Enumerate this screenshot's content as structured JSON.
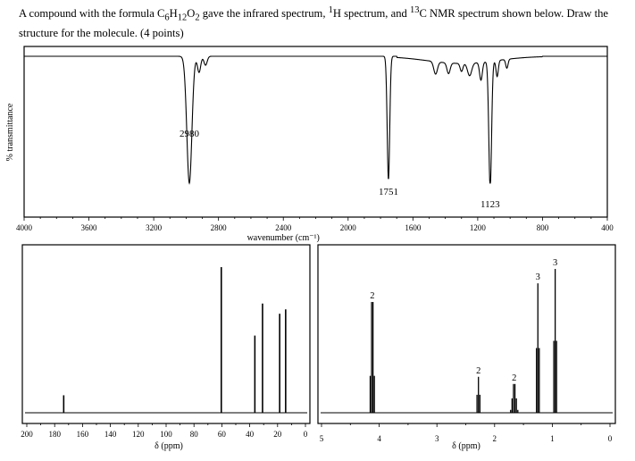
{
  "question": {
    "text_before_formula": "A compound with the formula ",
    "formula": {
      "c": "C",
      "c_sub": "6",
      "h": "H",
      "h_sub": "12",
      "o": "O",
      "o_sub": "2"
    },
    "text_after_formula": " gave the infrared spectrum, ",
    "h_sup": "1",
    "h_text": "H spectrum, and ",
    "c_sup": "13",
    "c_text": "C NMR spectrum shown below. Draw the structure for the molecule. (4 points)"
  },
  "chart_data": [
    {
      "type": "line",
      "name": "IR spectrum",
      "ylabel": "% transmittance",
      "xlabel": "wavenumber (cm⁻¹)",
      "xlim": [
        4000,
        400
      ],
      "x_ticks": [
        "4000",
        "3600",
        "3200",
        "2800",
        "2400",
        "2000",
        "1600",
        "1200",
        "800",
        "400"
      ],
      "peaks": [
        {
          "x": 2980,
          "label": "2980",
          "depth": 0.66
        },
        {
          "x": 1751,
          "label": "1751",
          "depth": 0.97
        },
        {
          "x": 1123,
          "label": "1123",
          "depth": 1.0
        }
      ]
    },
    {
      "type": "bar",
      "name": "13C NMR spectrum",
      "xlabel": "δ (ppm)",
      "xlim": [
        200,
        0
      ],
      "x_ticks": [
        "200",
        "180",
        "160",
        "140",
        "120",
        "100",
        "80",
        "60",
        "40",
        "20",
        "0"
      ],
      "peaks": [
        {
          "ppm": 173.5,
          "height": 0.12
        },
        {
          "ppm": 60.4,
          "height": 1.0
        },
        {
          "ppm": 36.3,
          "height": 0.53
        },
        {
          "ppm": 30.8,
          "height": 0.75
        },
        {
          "ppm": 18.5,
          "height": 0.68
        },
        {
          "ppm": 14.2,
          "height": 0.71
        }
      ]
    },
    {
      "type": "bar",
      "name": "1H NMR spectrum",
      "xlabel": "δ (ppm)",
      "xlim": [
        5,
        0
      ],
      "x_ticks": [
        "5",
        "4",
        "3",
        "2",
        "1",
        "0"
      ],
      "multiplets": [
        {
          "ppm": 4.12,
          "mult": 4,
          "j": 0.024,
          "height": 0.77,
          "integration": "2"
        },
        {
          "ppm": 2.28,
          "mult": 3,
          "j": 0.025,
          "height": 0.25,
          "integration": "2"
        },
        {
          "ppm": 1.66,
          "mult": 6,
          "j": 0.025,
          "height": 0.2,
          "integration": "2"
        },
        {
          "ppm": 1.25,
          "mult": 3,
          "j": 0.024,
          "height": 0.9,
          "integration": "3"
        },
        {
          "ppm": 0.95,
          "mult": 3,
          "j": 0.024,
          "height": 1.0,
          "integration": "3"
        }
      ]
    }
  ]
}
